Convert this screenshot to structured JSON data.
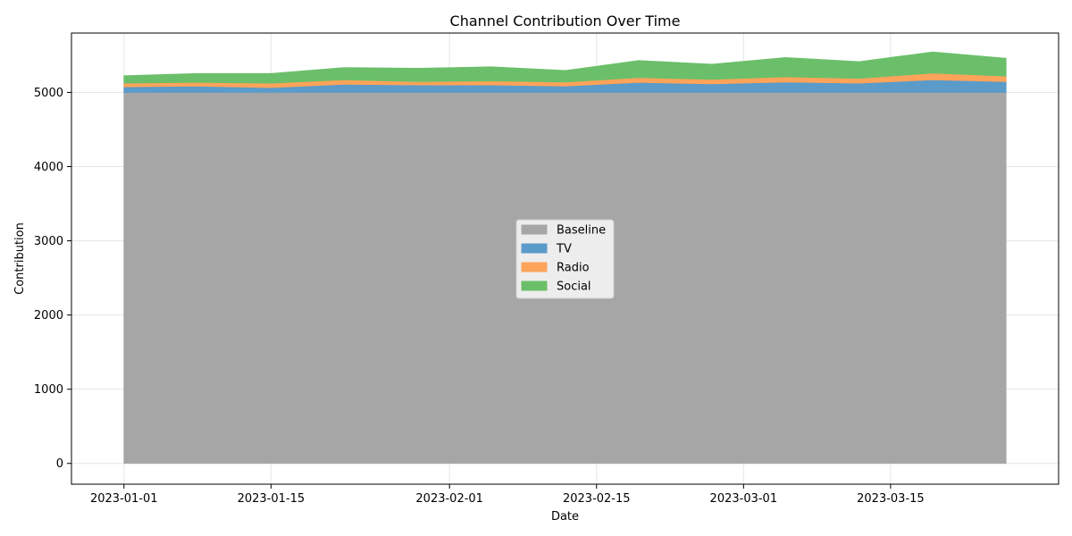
{
  "chart_data": {
    "type": "area",
    "stacked": true,
    "title": "Channel Contribution Over Time",
    "xlabel": "Date",
    "ylabel": "Contribution",
    "x": [
      "2023-01-01",
      "2023-01-08",
      "2023-01-15",
      "2023-01-22",
      "2023-01-29",
      "2023-02-05",
      "2023-02-12",
      "2023-02-19",
      "2023-02-26",
      "2023-03-05",
      "2023-03-12",
      "2023-03-19",
      "2023-03-26"
    ],
    "series": [
      {
        "name": "Baseline",
        "color": "#a6a6a6",
        "values": [
          5000,
          5000,
          5000,
          5000,
          5000,
          5000,
          5000,
          5000,
          5000,
          5000,
          5000,
          5000,
          5000
        ]
      },
      {
        "name": "TV",
        "color": "#5b9bc9",
        "values": [
          75,
          85,
          65,
          110,
          100,
          100,
          85,
          135,
          115,
          140,
          125,
          170,
          145
        ]
      },
      {
        "name": "Radio",
        "color": "#fda35a",
        "values": [
          50,
          50,
          60,
          60,
          45,
          55,
          55,
          65,
          60,
          70,
          65,
          90,
          75
        ]
      },
      {
        "name": "Social",
        "color": "#6bbf6a",
        "values": [
          100,
          120,
          130,
          165,
          180,
          190,
          155,
          230,
          205,
          260,
          225,
          285,
          240
        ]
      }
    ],
    "x_ticks": [
      "2023-01-01",
      "2023-01-15",
      "2023-02-01",
      "2023-02-15",
      "2023-03-01",
      "2023-03-15"
    ],
    "y_ticks": [
      0,
      1000,
      2000,
      3000,
      4000,
      5000
    ],
    "xlim": [
      "2022-12-27",
      "2023-03-31"
    ],
    "ylim": [
      -280,
      5800
    ],
    "grid": true,
    "legend_position": "center"
  }
}
